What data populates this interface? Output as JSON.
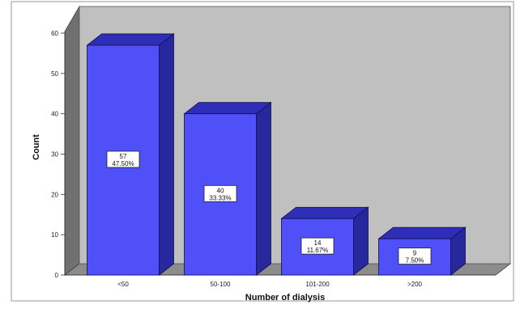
{
  "chart_data": {
    "type": "bar",
    "categories": [
      "<50",
      "50-100",
      "101-200",
      ">200"
    ],
    "values": [
      57,
      40,
      14,
      9
    ],
    "percent_labels": [
      "47.50%",
      "33.33%",
      "11.67%",
      "7.50%"
    ],
    "title": "",
    "xlabel": "Number of dialysis",
    "ylabel": "Count",
    "ylim": [
      0,
      60
    ],
    "yticks": [
      0,
      10,
      20,
      30,
      40,
      50,
      60
    ],
    "grid": false,
    "legend": "none",
    "style": "3d"
  },
  "colors": {
    "bar_front": "#5050f8",
    "bar_top": "#2e2eb8",
    "bar_side": "#28289e",
    "bar_edge": "#10104a",
    "back_wall": "#c0c0c0",
    "side_wall": "#707070",
    "floor": "#8c8c8c",
    "frame": "#9a9a9a"
  }
}
